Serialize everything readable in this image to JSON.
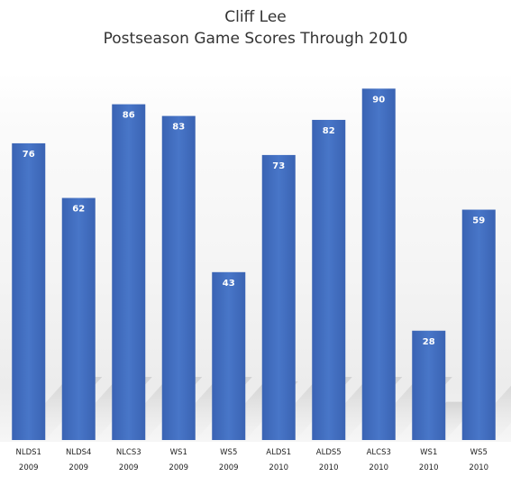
{
  "chart_data": {
    "type": "bar",
    "title": "Cliff Lee",
    "subtitle": "Postseason Game Scores Through 2010",
    "categories": [
      "NLDS1",
      "NLDS4",
      "NLCS3",
      "WS1",
      "WS5",
      "ALDS1",
      "ALDS5",
      "ALCS3",
      "WS1",
      "WS5"
    ],
    "category_years": [
      "2009",
      "2009",
      "2009",
      "2009",
      "2009",
      "2010",
      "2010",
      "2010",
      "2010",
      "2010"
    ],
    "values": [
      76,
      62,
      86,
      83,
      43,
      73,
      82,
      90,
      28,
      59
    ],
    "ylim": [
      0,
      100
    ],
    "grid": false,
    "legend": "none",
    "bar_color": "#3b66b8",
    "bar_color_light": "#4a79cc",
    "data_labels": true
  }
}
